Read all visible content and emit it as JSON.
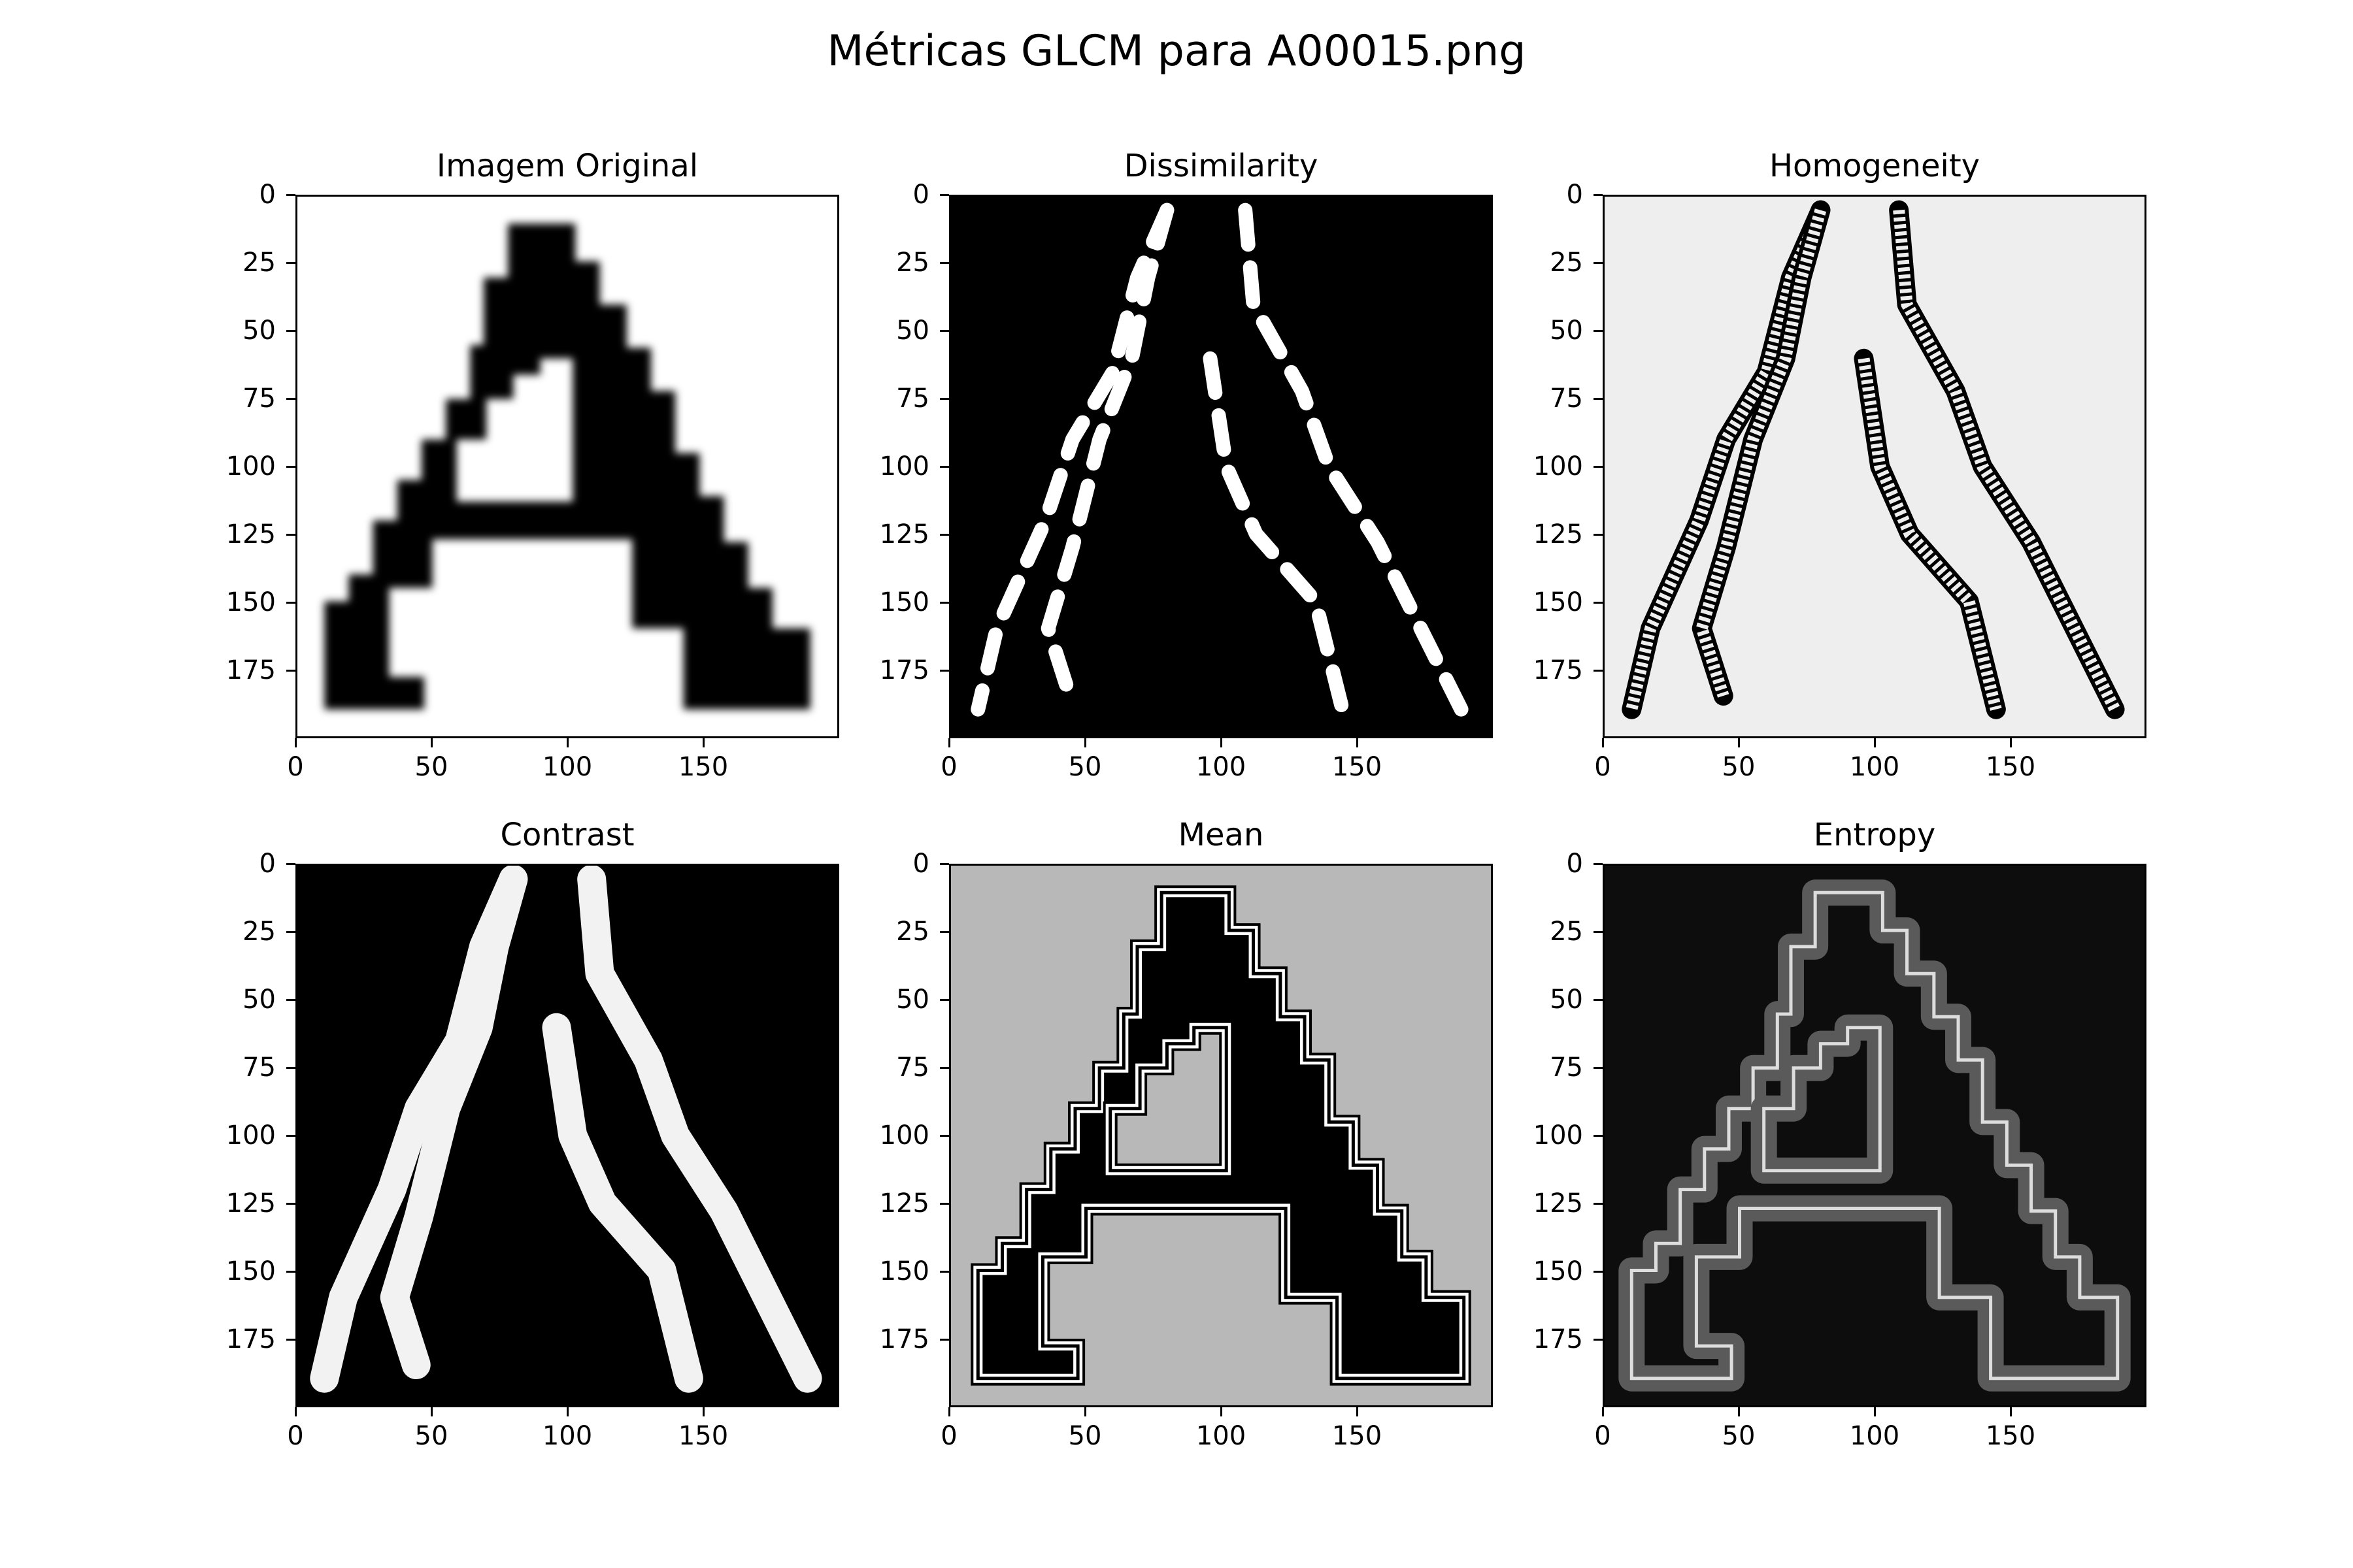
{
  "figure": {
    "title": "Métricas GLCM para A00015.png"
  },
  "chart_data": [
    {
      "type": "heatmap",
      "title": "Imagem Original",
      "xlim": [
        0,
        200
      ],
      "ylim": [
        200,
        0
      ],
      "x_ticks": [
        0,
        50,
        100,
        150
      ],
      "y_ticks": [
        0,
        25,
        50,
        75,
        100,
        125,
        150,
        175
      ],
      "colormap": "gray",
      "background": "#ffffff",
      "foreground": "#000000"
    },
    {
      "type": "heatmap",
      "title": "Dissimilarity",
      "xlim": [
        0,
        200
      ],
      "ylim": [
        200,
        0
      ],
      "x_ticks": [
        0,
        50,
        100,
        150
      ],
      "y_ticks": [
        0,
        25,
        50,
        75,
        100,
        125,
        150,
        175
      ],
      "colormap": "gray",
      "background": "#000000",
      "foreground": "#ffffff"
    },
    {
      "type": "heatmap",
      "title": "Homogeneity",
      "xlim": [
        0,
        200
      ],
      "ylim": [
        200,
        0
      ],
      "x_ticks": [
        0,
        50,
        100,
        150
      ],
      "y_ticks": [
        0,
        25,
        50,
        75,
        100,
        125,
        150,
        175
      ],
      "colormap": "gray",
      "background": "#eeeeee",
      "foreground": "#000000"
    },
    {
      "type": "heatmap",
      "title": "Contrast",
      "xlim": [
        0,
        200
      ],
      "ylim": [
        200,
        0
      ],
      "x_ticks": [
        0,
        50,
        100,
        150
      ],
      "y_ticks": [
        0,
        25,
        50,
        75,
        100,
        125,
        150,
        175
      ],
      "colormap": "gray",
      "background": "#000000",
      "foreground": "#f2f2f2"
    },
    {
      "type": "heatmap",
      "title": "Mean",
      "xlim": [
        0,
        200
      ],
      "ylim": [
        200,
        0
      ],
      "x_ticks": [
        0,
        50,
        100,
        150
      ],
      "y_ticks": [
        0,
        25,
        50,
        75,
        100,
        125,
        150,
        175
      ],
      "colormap": "gray",
      "background": "#b8b8b8",
      "foreground": "#000000"
    },
    {
      "type": "heatmap",
      "title": "Entropy",
      "xlim": [
        0,
        200
      ],
      "ylim": [
        200,
        0
      ],
      "x_ticks": [
        0,
        50,
        100,
        150
      ],
      "y_ticks": [
        0,
        25,
        50,
        75,
        100,
        125,
        150,
        175
      ],
      "colormap": "gray",
      "background": "#0d0d0d",
      "foreground": "#5a5a5a"
    }
  ],
  "letter_shape": {
    "outer_outline": [
      [
        78,
        10
      ],
      [
        103,
        10
      ],
      [
        103,
        24
      ],
      [
        112,
        24
      ],
      [
        112,
        40
      ],
      [
        122,
        40
      ],
      [
        122,
        56
      ],
      [
        131,
        56
      ],
      [
        131,
        72
      ],
      [
        140,
        72
      ],
      [
        140,
        95
      ],
      [
        149,
        95
      ],
      [
        149,
        111
      ],
      [
        158,
        111
      ],
      [
        158,
        128
      ],
      [
        167,
        128
      ],
      [
        167,
        145
      ],
      [
        176,
        145
      ],
      [
        176,
        160
      ],
      [
        190,
        160
      ],
      [
        190,
        190
      ],
      [
        143,
        190
      ],
      [
        143,
        160
      ],
      [
        124,
        160
      ],
      [
        124,
        127
      ],
      [
        50,
        127
      ],
      [
        50,
        145
      ],
      [
        34,
        145
      ],
      [
        34,
        178
      ],
      [
        47,
        178
      ],
      [
        47,
        190
      ],
      [
        10,
        190
      ],
      [
        10,
        150
      ],
      [
        19,
        150
      ],
      [
        19,
        140
      ],
      [
        28,
        140
      ],
      [
        28,
        120
      ],
      [
        37,
        120
      ],
      [
        37,
        105
      ],
      [
        46,
        105
      ],
      [
        46,
        90
      ],
      [
        55,
        90
      ],
      [
        55,
        75
      ],
      [
        64,
        75
      ],
      [
        64,
        55
      ],
      [
        69,
        55
      ],
      [
        69,
        30
      ],
      [
        78,
        30
      ]
    ],
    "inner_hole": [
      [
        90,
        60
      ],
      [
        102,
        60
      ],
      [
        102,
        113
      ],
      [
        59,
        113
      ],
      [
        59,
        90
      ],
      [
        70,
        90
      ],
      [
        70,
        75
      ],
      [
        80,
        75
      ],
      [
        80,
        66
      ],
      [
        90,
        66
      ]
    ],
    "diagonal_strokes": [
      [
        [
          80,
          5
        ],
        [
          69,
          30
        ],
        [
          60,
          65
        ],
        [
          45,
          90
        ],
        [
          35,
          120
        ],
        [
          26,
          140
        ],
        [
          17,
          160
        ],
        [
          10,
          190
        ]
      ],
      [
        [
          80,
          5
        ],
        [
          73,
          30
        ],
        [
          67,
          60
        ],
        [
          55,
          90
        ],
        [
          45,
          130
        ],
        [
          36,
          160
        ],
        [
          44,
          185
        ]
      ],
      [
        [
          109,
          5
        ],
        [
          112,
          40
        ],
        [
          130,
          72
        ],
        [
          140,
          100
        ],
        [
          158,
          128
        ],
        [
          174,
          160
        ],
        [
          189,
          190
        ]
      ],
      [
        [
          96,
          60
        ],
        [
          102,
          100
        ],
        [
          113,
          125
        ],
        [
          135,
          150
        ],
        [
          145,
          190
        ]
      ]
    ]
  }
}
